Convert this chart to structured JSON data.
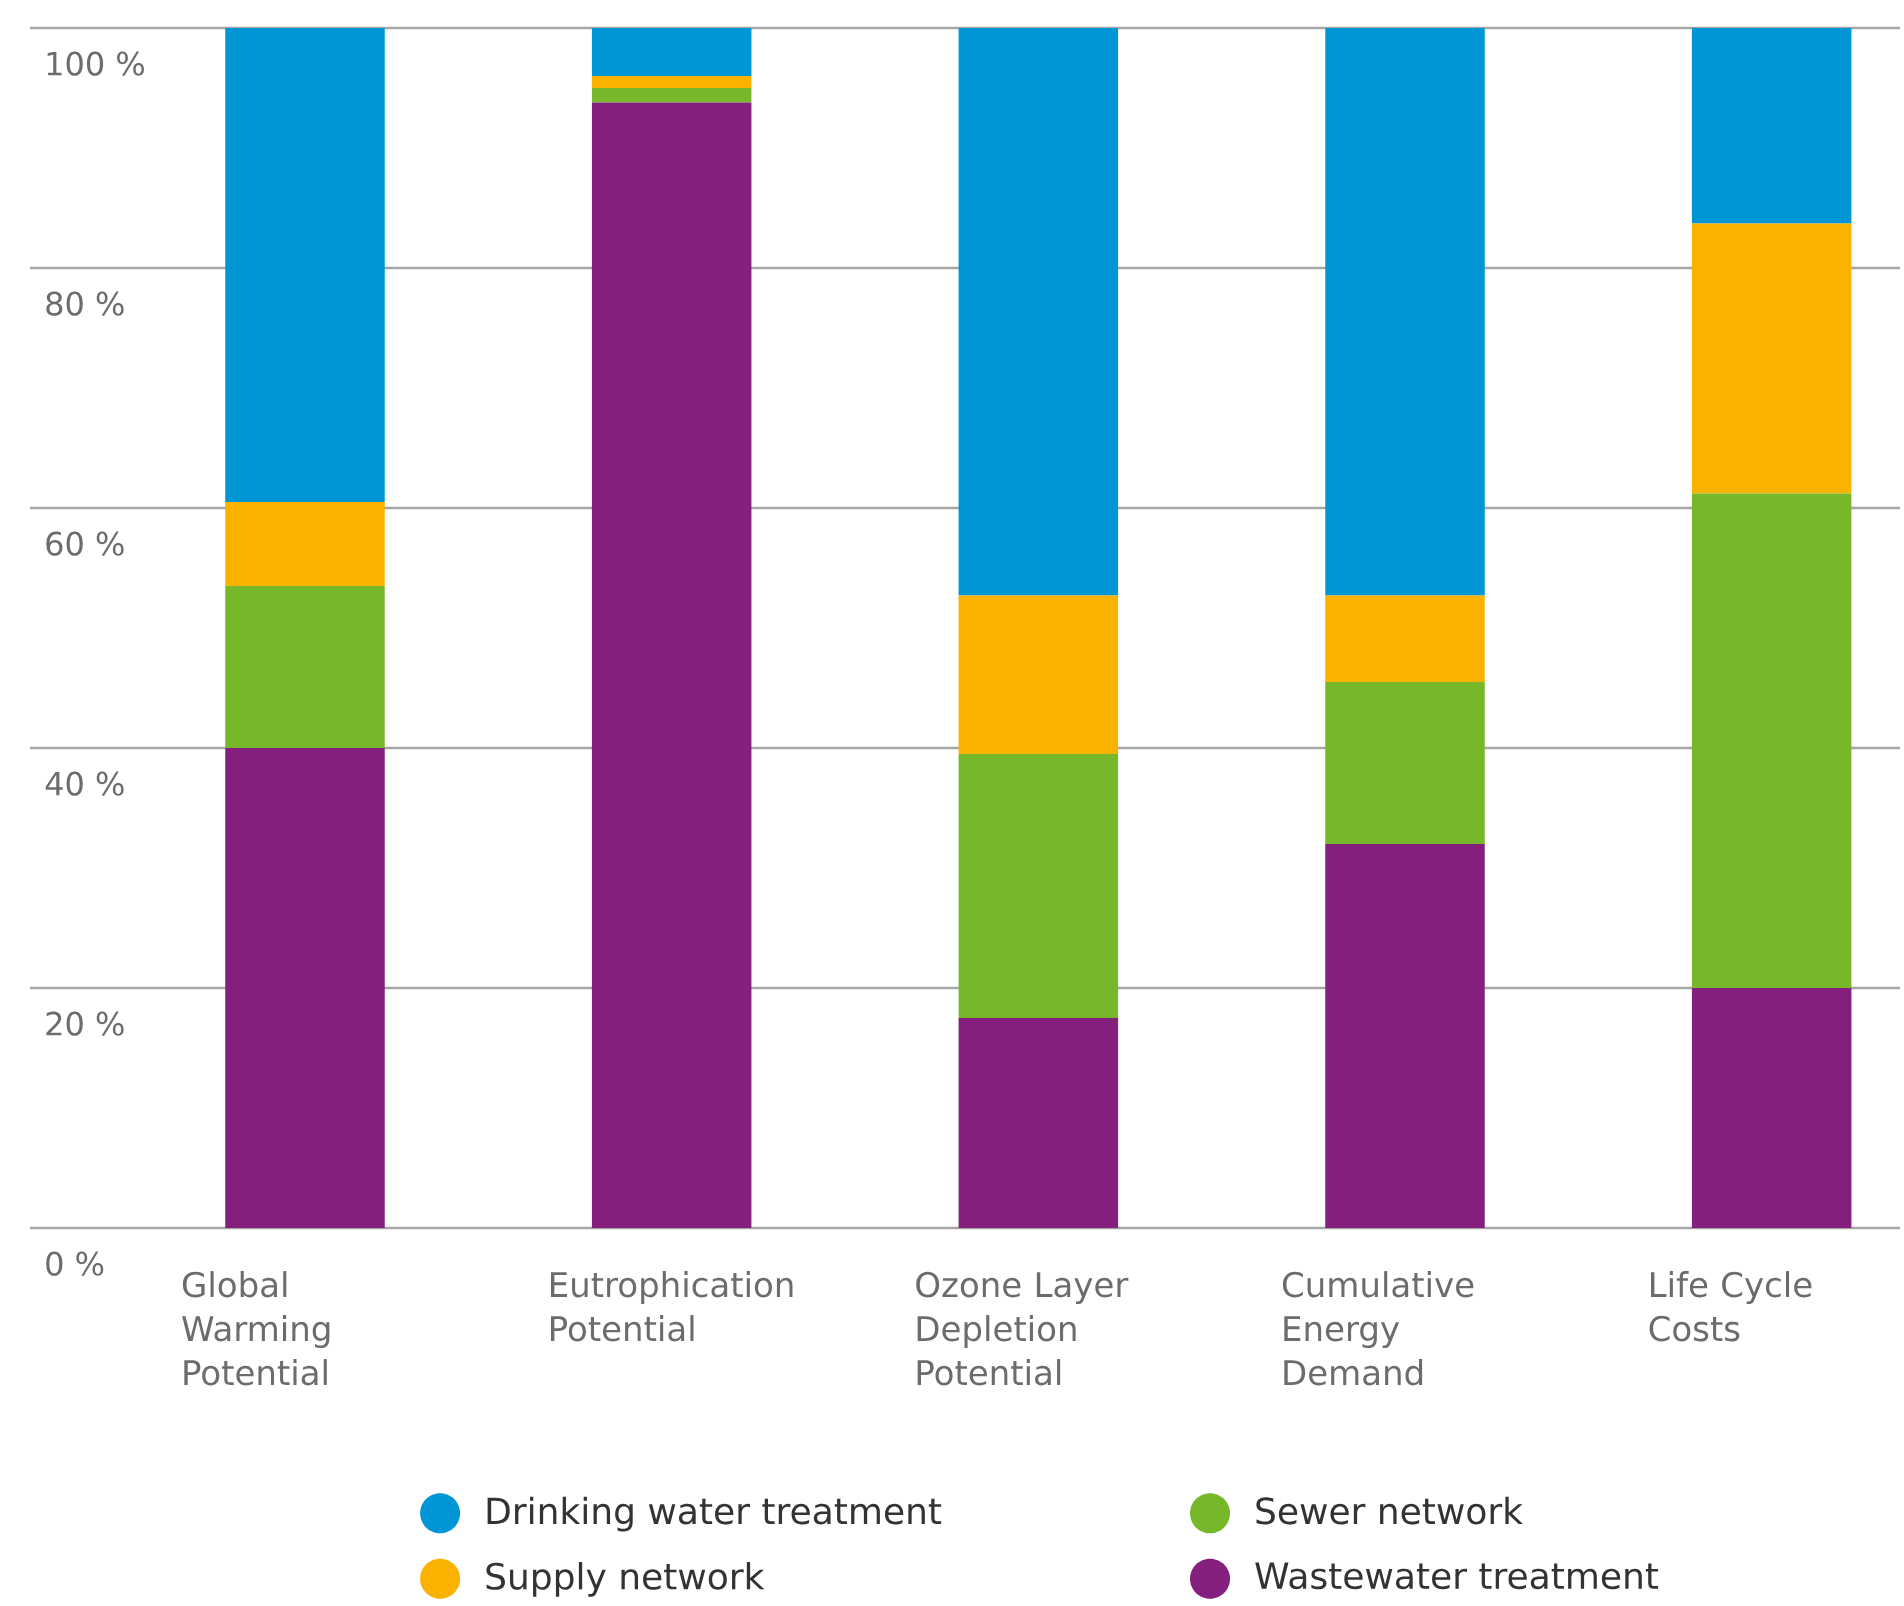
{
  "chart_data": {
    "type": "bar",
    "stacked": true,
    "categories": [
      "Global Warming Potential",
      "Eutrophication Potential",
      "Ozone Layer Depletion Potential",
      "Cumulative Energy Demand",
      "Life Cycle Costs"
    ],
    "series": [
      {
        "name": "Wastewater treatment",
        "color": "#841f7d",
        "values": [
          40,
          93.8,
          17.5,
          32,
          20
        ]
      },
      {
        "name": "Sewer network",
        "color": "#76b82a",
        "values": [
          13.5,
          1.2,
          22,
          13.5,
          41.2
        ]
      },
      {
        "name": "Supply network",
        "color": "#f9b200",
        "values": [
          7,
          1,
          13.2,
          7.2,
          22.5
        ]
      },
      {
        "name": "Drinking water treatment",
        "color": "#0096d6",
        "values": [
          39.5,
          4,
          47.3,
          47.3,
          16.3
        ]
      }
    ],
    "ylim": [
      0,
      100
    ],
    "yticks": [
      {
        "value": 0,
        "label": "0 %"
      },
      {
        "value": 20,
        "label": "20 %"
      },
      {
        "value": 40,
        "label": "40 %"
      },
      {
        "value": 60,
        "label": "60 %"
      },
      {
        "value": 80,
        "label": "80 %"
      },
      {
        "value": 100,
        "label": "100 %"
      }
    ],
    "grid": "y",
    "legend": "bottom"
  }
}
